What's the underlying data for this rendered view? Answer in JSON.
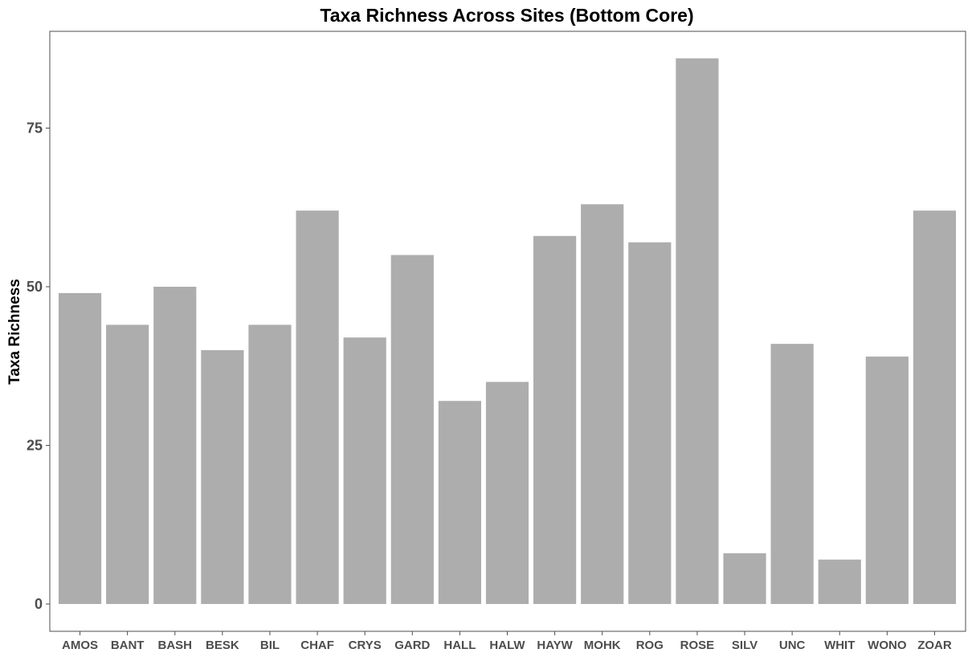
{
  "chart_data": {
    "type": "bar",
    "title": "Taxa Richness Across Sites (Bottom Core)",
    "xlabel": "",
    "ylabel": "Taxa Richness",
    "categories": [
      "AMOS",
      "BANT",
      "BASH",
      "BESK",
      "BIL",
      "CHAF",
      "CRYS",
      "GARD",
      "HALL",
      "HALW",
      "HAYW",
      "MOHK",
      "ROG",
      "ROSE",
      "SILV",
      "UNC",
      "WHIT",
      "WONO",
      "ZOAR"
    ],
    "values": [
      49,
      44,
      50,
      40,
      44,
      62,
      42,
      55,
      32,
      35,
      58,
      63,
      57,
      86,
      8,
      41,
      7,
      39,
      62
    ],
    "yticks": [
      0,
      25,
      50,
      75
    ],
    "ylim": [
      0,
      86
    ],
    "bar_color": "#adadad",
    "grid": false,
    "legend": "none"
  }
}
